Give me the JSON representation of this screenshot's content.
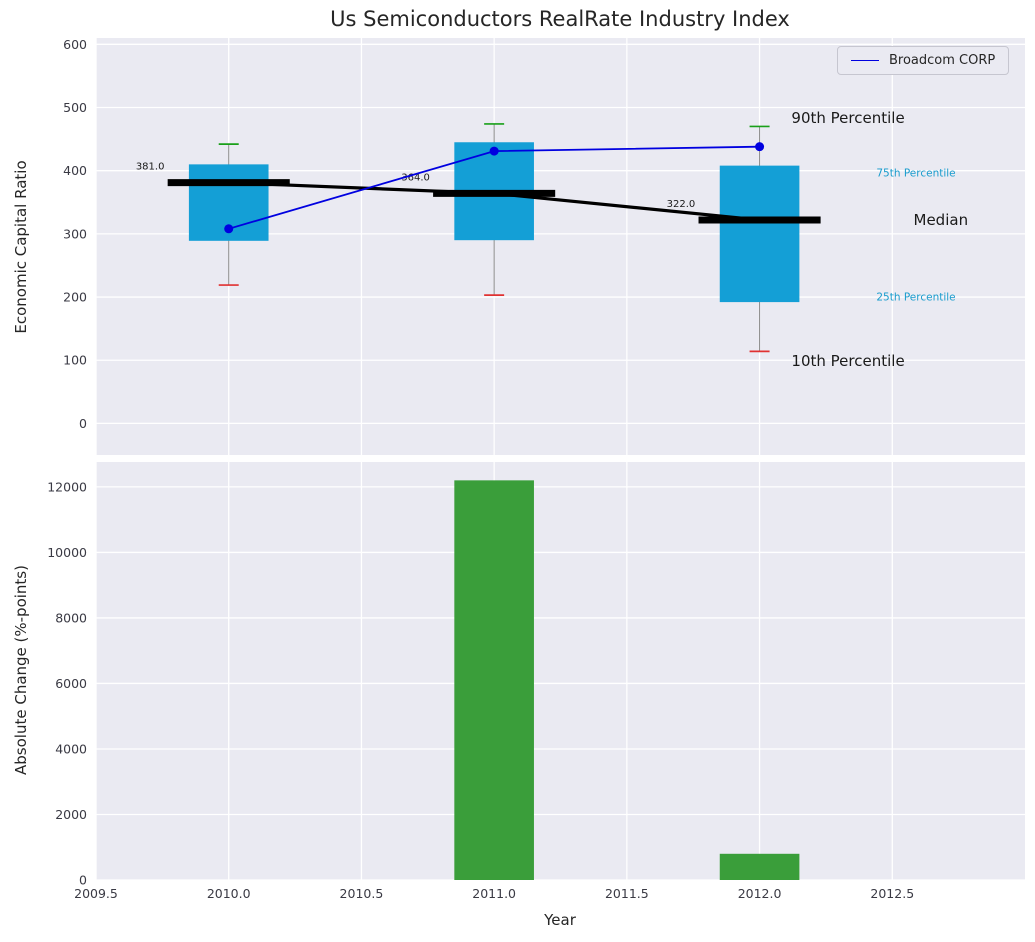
{
  "legend": {
    "label": "Broadcom CORP",
    "position": "upper right"
  },
  "colors": {
    "plot_bg": "#eaeaf2",
    "grid": "#ffffff",
    "box": "#149fd6",
    "bar": "#3a9e3a",
    "broadcom": "#0000e0",
    "median": "#000000",
    "cap_high": "#19a019",
    "cap_low": "#e03131",
    "whisker": "#8a8a8a",
    "text_dark": "#1a1a1a",
    "text_cyan": "#189ccd",
    "tick_text": "#3a3a44"
  },
  "chart_data": [
    {
      "type": "box-percentile",
      "title": "Us Semiconductors RealRate Industry Index",
      "ylabel": "Economic Capital Ratio",
      "ylim": [
        -50,
        610
      ],
      "yticks": [
        0,
        100,
        200,
        300,
        400,
        500,
        600
      ],
      "xlim": [
        2009.5,
        2013.0
      ],
      "xticks": [
        "2009.5",
        "2010.0",
        "2010.5",
        "2011.0",
        "2011.5",
        "2012.0",
        "2012.5"
      ],
      "grid": true,
      "years": [
        2010,
        2011,
        2012
      ],
      "p90": [
        442,
        474,
        470
      ],
      "p75": [
        410,
        445,
        408
      ],
      "median": [
        381,
        364,
        322
      ],
      "p25": [
        289,
        290,
        192
      ],
      "p10": [
        219,
        203,
        114
      ],
      "median_labels": [
        "381.0",
        "364.0",
        "322.0"
      ],
      "box_width": 0.3,
      "median_width": 0.46,
      "series": [
        {
          "name": "Broadcom CORP",
          "values": [
            308,
            431,
            438
          ]
        }
      ],
      "annotations": [
        {
          "text": "90th Percentile",
          "x": 2012.12,
          "value": 484,
          "color": "#1a1a1a",
          "size": 15
        },
        {
          "text": "75th Percentile",
          "x": 2012.44,
          "value": 397,
          "color": "#189ccd",
          "size": 10.5
        },
        {
          "text": "Median",
          "x": 2012.58,
          "value": 322,
          "color": "#1a1a1a",
          "size": 15
        },
        {
          "text": "25th Percentile",
          "x": 2012.44,
          "value": 200,
          "color": "#189ccd",
          "size": 10.5
        },
        {
          "text": "10th Percentile",
          "x": 2012.12,
          "value": 99,
          "color": "#1a1a1a",
          "size": 15
        }
      ]
    },
    {
      "type": "bar",
      "ylabel": "Absolute Change (%-points)",
      "xlabel": "Year",
      "ylim": [
        0,
        12760
      ],
      "yticks": [
        0,
        2000,
        4000,
        6000,
        8000,
        10000,
        12000
      ],
      "xlim": [
        2009.5,
        2013.0
      ],
      "xticks": [
        "2009.5",
        "2010.0",
        "2010.5",
        "2011.0",
        "2011.5",
        "2012.0",
        "2012.5"
      ],
      "grid": true,
      "categories": [
        2010,
        2011,
        2012
      ],
      "values": [
        0,
        12200,
        800
      ],
      "bar_width": 0.3
    }
  ]
}
